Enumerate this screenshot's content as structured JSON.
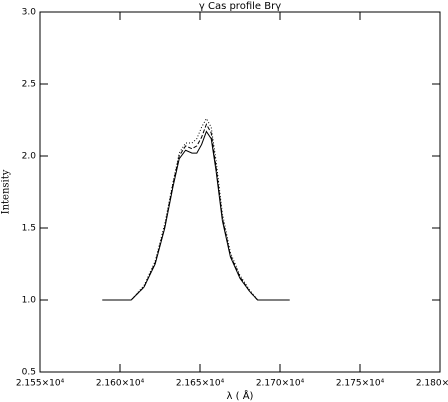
{
  "chart_data": {
    "type": "line",
    "title": "γ Cas profile Brγ",
    "xlabel": "λ ( Å)",
    "ylabel": "Intensity",
    "x": [
      21589,
      21600,
      21607,
      21615,
      21622,
      21628,
      21633,
      21637,
      21641,
      21645,
      21648,
      21651,
      21654,
      21657,
      21660,
      21664,
      21669,
      21675,
      21681,
      21686,
      21695,
      21706
    ],
    "series": [
      {
        "color": "#000000",
        "dash": "solid",
        "values": [
          1.0,
          1.0,
          1.0,
          1.09,
          1.25,
          1.5,
          1.78,
          1.98,
          2.04,
          2.02,
          2.02,
          2.08,
          2.17,
          2.12,
          1.9,
          1.55,
          1.3,
          1.15,
          1.06,
          1.0,
          1.0,
          1.0
        ]
      },
      {
        "color": "#000000",
        "dash": "dotted",
        "values": [
          1.0,
          1.0,
          1.0,
          1.1,
          1.27,
          1.53,
          1.81,
          2.02,
          2.09,
          2.09,
          2.12,
          2.2,
          2.26,
          2.2,
          1.97,
          1.6,
          1.33,
          1.17,
          1.07,
          1.0,
          1.0,
          1.0
        ]
      },
      {
        "color": "#000000",
        "dash": "dashed",
        "values": [
          1.0,
          1.0,
          1.0,
          1.09,
          1.26,
          1.51,
          1.8,
          2.0,
          2.07,
          2.05,
          2.07,
          2.13,
          2.22,
          2.16,
          1.93,
          1.57,
          1.31,
          1.16,
          1.06,
          1.0,
          1.0,
          1.0
        ]
      }
    ],
    "xlim": [
      21550,
      21800
    ],
    "xticks": [
      {
        "value": 21550,
        "label": "2.155×10⁴"
      },
      {
        "value": 21600,
        "label": "2.160×10⁴"
      },
      {
        "value": 21650,
        "label": "2.165×10⁴"
      },
      {
        "value": 21700,
        "label": "2.170×10⁴"
      },
      {
        "value": 21750,
        "label": "2.175×10⁴"
      },
      {
        "value": 21800,
        "label": "2.180×10⁴"
      }
    ],
    "ylim": [
      0.5,
      3.0
    ],
    "yticks": [
      0.5,
      {
        "value": 1.0,
        "label": "1.0"
      },
      1.5,
      {
        "value": 2.0,
        "label": "2.0"
      },
      2.5,
      {
        "value": 3.0,
        "label": "3.0"
      }
    ],
    "grid": false
  }
}
